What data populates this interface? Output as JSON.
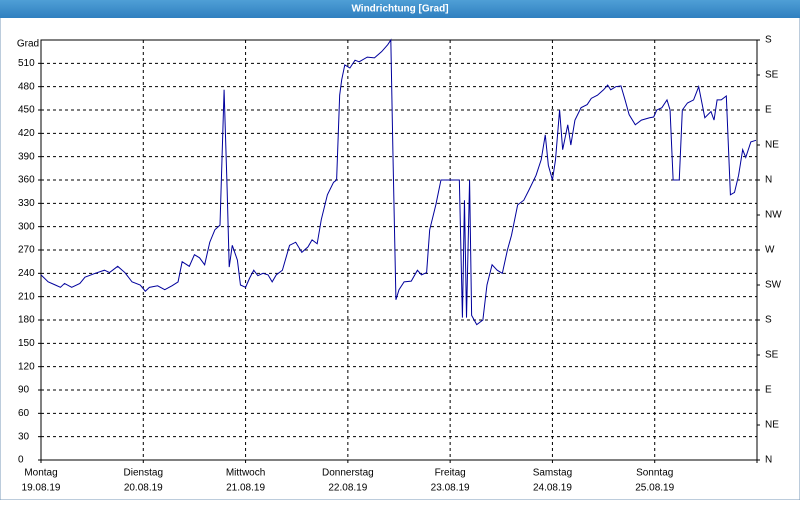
{
  "chart_data": {
    "type": "line",
    "title": "Windrichtung [Grad]",
    "ylabel": "Grad",
    "xlim": [
      0,
      7
    ],
    "xticks": [
      {
        "value": 0,
        "label": "Montag",
        "sublabel": "19.08.19"
      },
      {
        "value": 1,
        "label": "Dienstag",
        "sublabel": "20.08.19"
      },
      {
        "value": 2,
        "label": "Mittwoch",
        "sublabel": "21.08.19"
      },
      {
        "value": 3,
        "label": "Donnerstag",
        "sublabel": "22.08.19"
      },
      {
        "value": 4,
        "label": "Freitag",
        "sublabel": "23.08.19"
      },
      {
        "value": 5,
        "label": "Samstag",
        "sublabel": "24.08.19"
      },
      {
        "value": 6,
        "label": "Sonntag",
        "sublabel": "25.08.19"
      },
      7
    ],
    "ylim": [
      0,
      540
    ],
    "yticks": [
      0,
      30,
      60,
      90,
      120,
      150,
      180,
      210,
      240,
      270,
      300,
      330,
      360,
      390,
      420,
      450,
      480,
      510
    ],
    "y2lim": [
      0,
      540
    ],
    "y2ticks": [
      {
        "value": 0,
        "label": "N"
      },
      {
        "value": 45,
        "label": "NE"
      },
      {
        "value": 90,
        "label": "E"
      },
      {
        "value": 135,
        "label": "SE"
      },
      {
        "value": 180,
        "label": "S"
      },
      {
        "value": 225,
        "label": "SW"
      },
      {
        "value": 270,
        "label": "W"
      },
      {
        "value": 315,
        "label": "NW"
      },
      {
        "value": 360,
        "label": "N"
      },
      {
        "value": 405,
        "label": "NE"
      },
      {
        "value": 450,
        "label": "E"
      },
      {
        "value": 495,
        "label": "SE"
      },
      {
        "value": 540,
        "label": "S"
      }
    ],
    "grid": true,
    "series": [
      {
        "color": "#00009c",
        "x": [
          0,
          0.07,
          0.14,
          0.19,
          0.23,
          0.3,
          0.38,
          0.43,
          0.53,
          0.62,
          0.67,
          0.75,
          0.82,
          0.89,
          0.97,
          1.02,
          1.06,
          1.14,
          1.21,
          1.28,
          1.34,
          1.38,
          1.45,
          1.5,
          1.55,
          1.6,
          1.65,
          1.7,
          1.75,
          1.79,
          1.82,
          1.84,
          1.87,
          1.92,
          1.95,
          2.0,
          2.04,
          2.08,
          2.12,
          2.17,
          2.22,
          2.26,
          2.3,
          2.36,
          2.43,
          2.49,
          2.55,
          2.61,
          2.65,
          2.7,
          2.74,
          2.8,
          2.86,
          2.89,
          2.92,
          2.94,
          2.97,
          3.02,
          3.07,
          3.11,
          3.19,
          3.26,
          3.33,
          3.39,
          3.42,
          3.44,
          3.47,
          3.5,
          3.55,
          3.62,
          3.68,
          3.72,
          3.77,
          3.8,
          3.86,
          3.91,
          3.97,
          4.04,
          4.09,
          4.12,
          4.14,
          4.16,
          4.19,
          4.21,
          4.26,
          4.32,
          4.36,
          4.41,
          4.46,
          4.51,
          4.56,
          4.6,
          4.66,
          4.72,
          4.77,
          4.84,
          4.89,
          4.93,
          4.96,
          5.0,
          5.03,
          5.07,
          5.1,
          5.15,
          5.18,
          5.22,
          5.28,
          5.34,
          5.38,
          5.44,
          5.5,
          5.54,
          5.57,
          5.62,
          5.67,
          5.71,
          5.75,
          5.81,
          5.87,
          5.95,
          5.99,
          6.02,
          6.07,
          6.12,
          6.15,
          6.18,
          6.24,
          6.27,
          6.32,
          6.38,
          6.43,
          6.49,
          6.55,
          6.58,
          6.61,
          6.65,
          6.7,
          6.74,
          6.78,
          6.82,
          6.86,
          6.89,
          6.94,
          6.99
        ],
        "values": [
          238,
          229,
          225,
          222,
          227,
          222,
          227,
          235,
          240,
          244,
          241,
          249,
          241,
          229,
          225,
          217,
          222,
          224,
          219,
          224,
          229,
          255,
          249,
          264,
          260,
          251,
          280,
          296,
          302,
          476,
          347,
          248,
          276,
          257,
          225,
          222,
          234,
          244,
          237,
          240,
          238,
          229,
          238,
          244,
          276,
          280,
          267,
          274,
          283,
          278,
          309,
          341,
          357,
          360,
          469,
          489,
          508,
          504,
          514,
          512,
          518,
          517,
          525,
          534,
          540,
          399,
          206,
          219,
          229,
          230,
          244,
          238,
          241,
          296,
          328,
          360,
          360,
          360,
          360,
          183,
          334,
          183,
          360,
          186,
          174,
          180,
          225,
          251,
          244,
          240,
          270,
          289,
          328,
          334,
          347,
          366,
          386,
          418,
          379,
          360,
          386,
          450,
          399,
          431,
          405,
          437,
          453,
          457,
          465,
          469,
          476,
          482,
          476,
          480,
          481,
          463,
          444,
          431,
          437,
          440,
          441,
          450,
          453,
          463,
          450,
          360,
          360,
          450,
          459,
          463,
          480,
          440,
          448,
          437,
          463,
          463,
          468,
          341,
          344,
          366,
          399,
          389,
          409,
          411
        ]
      }
    ]
  }
}
